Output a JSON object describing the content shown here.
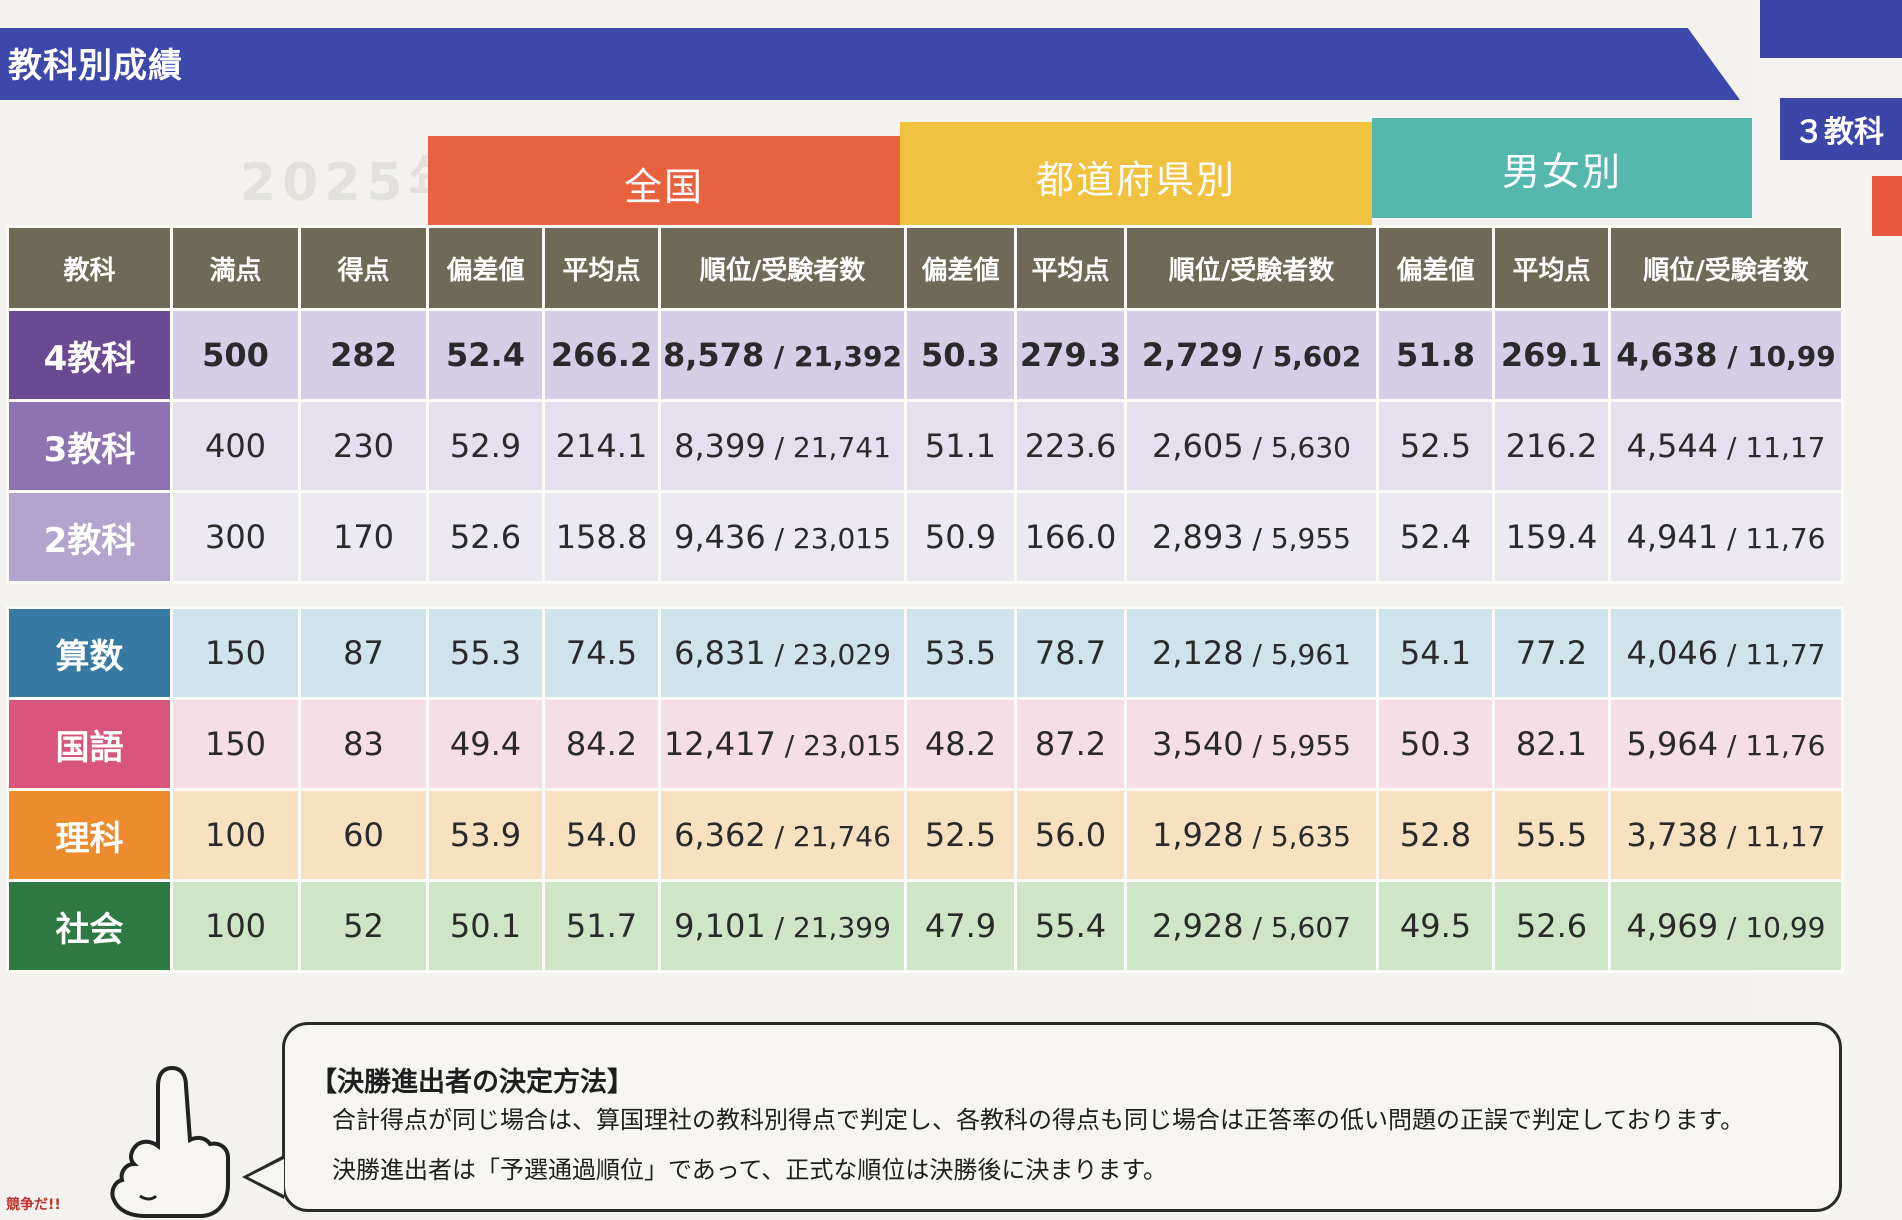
{
  "section_title": "教科別成績",
  "right_page_label": "３教科",
  "watermark": "2025年",
  "groups": {
    "national": "全国",
    "prefecture": "都道府県別",
    "gender": "男女別"
  },
  "headers": [
    "教科",
    "満点",
    "得点",
    "偏差値",
    "平均点",
    "順位/受験者数",
    "偏差値",
    "平均点",
    "順位/受験者数",
    "偏差値",
    "平均点",
    "順位/受験者数"
  ],
  "rows": [
    {
      "subject": "4教科",
      "max": "500",
      "score": "282",
      "nat_dev": "52.4",
      "nat_avg": "266.2",
      "nat_rank": "8,578",
      "nat_total": "21,392",
      "pref_dev": "50.3",
      "pref_avg": "279.3",
      "pref_rank": "2,729",
      "pref_total": "5,602",
      "gen_dev": "51.8",
      "gen_avg": "269.1",
      "gen_rank": "4,638",
      "gen_total": "10,99"
    },
    {
      "subject": "3教科",
      "max": "400",
      "score": "230",
      "nat_dev": "52.9",
      "nat_avg": "214.1",
      "nat_rank": "8,399",
      "nat_total": "21,741",
      "pref_dev": "51.1",
      "pref_avg": "223.6",
      "pref_rank": "2,605",
      "pref_total": "5,630",
      "gen_dev": "52.5",
      "gen_avg": "216.2",
      "gen_rank": "4,544",
      "gen_total": "11,17"
    },
    {
      "subject": "2教科",
      "max": "300",
      "score": "170",
      "nat_dev": "52.6",
      "nat_avg": "158.8",
      "nat_rank": "9,436",
      "nat_total": "23,015",
      "pref_dev": "50.9",
      "pref_avg": "166.0",
      "pref_rank": "2,893",
      "pref_total": "5,955",
      "gen_dev": "52.4",
      "gen_avg": "159.4",
      "gen_rank": "4,941",
      "gen_total": "11,76"
    },
    {
      "subject": "算数",
      "max": "150",
      "score": "87",
      "nat_dev": "55.3",
      "nat_avg": "74.5",
      "nat_rank": "6,831",
      "nat_total": "23,029",
      "pref_dev": "53.5",
      "pref_avg": "78.7",
      "pref_rank": "2,128",
      "pref_total": "5,961",
      "gen_dev": "54.1",
      "gen_avg": "77.2",
      "gen_rank": "4,046",
      "gen_total": "11,77"
    },
    {
      "subject": "国語",
      "max": "150",
      "score": "83",
      "nat_dev": "49.4",
      "nat_avg": "84.2",
      "nat_rank": "12,417",
      "nat_total": "23,015",
      "pref_dev": "48.2",
      "pref_avg": "87.2",
      "pref_rank": "3,540",
      "pref_total": "5,955",
      "gen_dev": "50.3",
      "gen_avg": "82.1",
      "gen_rank": "5,964",
      "gen_total": "11,76"
    },
    {
      "subject": "理科",
      "max": "100",
      "score": "60",
      "nat_dev": "53.9",
      "nat_avg": "54.0",
      "nat_rank": "6,362",
      "nat_total": "21,746",
      "pref_dev": "52.5",
      "pref_avg": "56.0",
      "pref_rank": "1,928",
      "pref_total": "5,635",
      "gen_dev": "52.8",
      "gen_avg": "55.5",
      "gen_rank": "3,738",
      "gen_total": "11,17"
    },
    {
      "subject": "社会",
      "max": "100",
      "score": "52",
      "nat_dev": "50.1",
      "nat_avg": "51.7",
      "nat_rank": "9,101",
      "nat_total": "21,399",
      "pref_dev": "47.9",
      "pref_avg": "55.4",
      "pref_rank": "2,928",
      "pref_total": "5,607",
      "gen_dev": "49.5",
      "gen_avg": "52.6",
      "gen_rank": "4,969",
      "gen_total": "10,99"
    }
  ],
  "note": {
    "title": "【決勝進出者の決定方法】",
    "line1": "合計得点が同じ場合は、算国理社の教科別得点で判定し、各教科の得点も同じ場合は正答率の低い問題の正誤で判定しております。",
    "line2": "決勝進出者は「予選通過順位」であって、正式な順位は決勝後に決まります。"
  },
  "scribble": "競争だ!!"
}
